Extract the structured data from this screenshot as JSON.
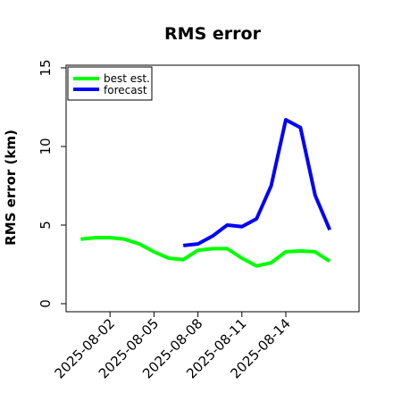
{
  "chart_data": {
    "type": "line",
    "title": "RMS error",
    "xlabel": "",
    "ylabel": "RMS error (km)",
    "ylim": [
      0,
      15
    ],
    "yticks": [
      0,
      5,
      10,
      15
    ],
    "xticks": [
      "2025-08-02",
      "2025-08-05",
      "2025-08-08",
      "2025-08-11",
      "2025-08-14"
    ],
    "xlim": [
      "2025-07-30",
      "2025-08-19"
    ],
    "grid": false,
    "legend_position": "top-left",
    "series": [
      {
        "name": "best est.",
        "color": "#00ff00",
        "x": [
          "2025-07-31",
          "2025-08-01",
          "2025-08-02",
          "2025-08-03",
          "2025-08-04",
          "2025-08-05",
          "2025-08-06",
          "2025-08-07",
          "2025-08-08",
          "2025-08-09",
          "2025-08-10",
          "2025-08-11",
          "2025-08-12",
          "2025-08-13",
          "2025-08-14",
          "2025-08-15",
          "2025-08-16",
          "2025-08-17"
        ],
        "values": [
          4.1,
          4.2,
          4.2,
          4.1,
          3.8,
          3.3,
          2.9,
          2.8,
          3.4,
          3.5,
          3.5,
          2.9,
          2.4,
          2.6,
          3.3,
          3.35,
          3.3,
          2.7
        ]
      },
      {
        "name": "forecast",
        "color": "#0000ff",
        "x": [
          "2025-08-07",
          "2025-08-08",
          "2025-08-09",
          "2025-08-10",
          "2025-08-11",
          "2025-08-12",
          "2025-08-13",
          "2025-08-14",
          "2025-08-15",
          "2025-08-16",
          "2025-08-17"
        ],
        "values": [
          3.7,
          3.8,
          4.3,
          5.0,
          4.9,
          5.4,
          7.5,
          11.7,
          11.2,
          6.9,
          4.7
        ]
      }
    ]
  }
}
